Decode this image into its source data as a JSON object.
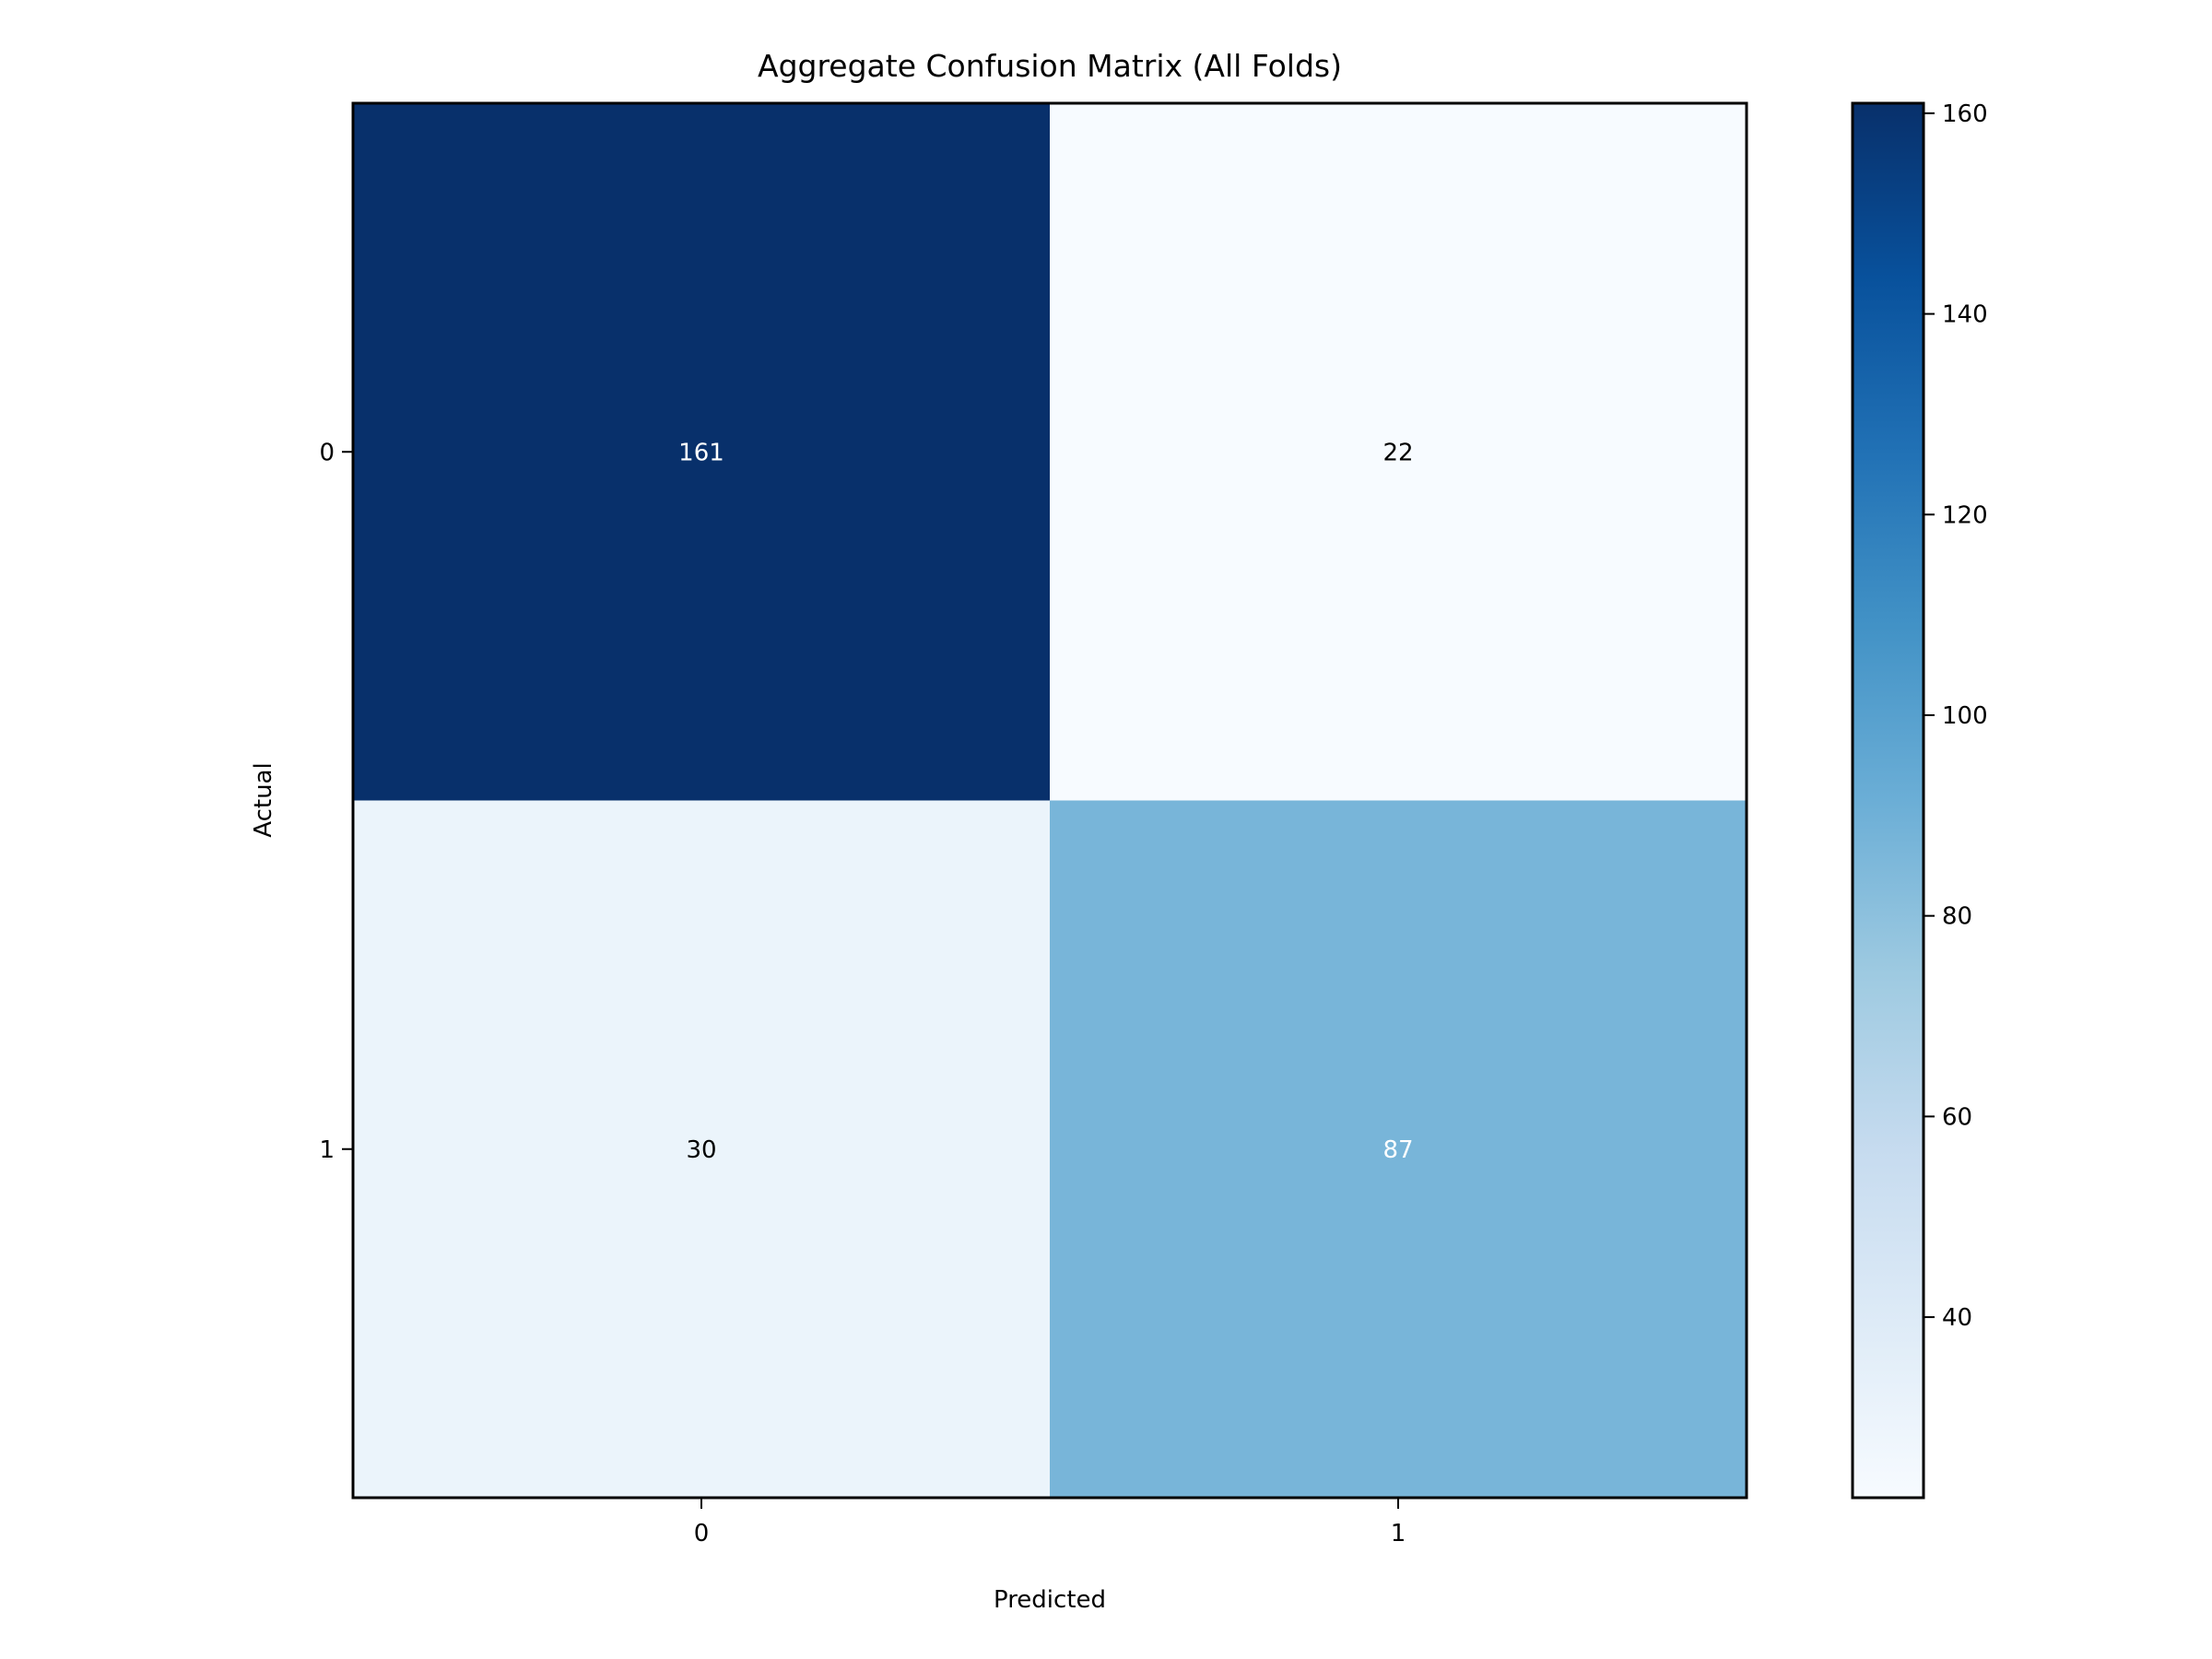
{
  "chart_data": {
    "type": "heatmap",
    "title": "Aggregate Confusion Matrix (All Folds)",
    "xlabel": "Predicted",
    "ylabel": "Actual",
    "x_categories": [
      "0",
      "1"
    ],
    "y_categories": [
      "0",
      "1"
    ],
    "values": [
      [
        161,
        22
      ],
      [
        30,
        87
      ]
    ],
    "colormap": "Blues",
    "colormap_stops": [
      "#f7fbff",
      "#deebf7",
      "#c6dbef",
      "#9ecae1",
      "#6baed6",
      "#4292c6",
      "#2171b5",
      "#08519c",
      "#08306b"
    ],
    "color_range": [
      22,
      161
    ],
    "colorbar_ticks": [
      40,
      60,
      80,
      100,
      120,
      140,
      160
    ],
    "grid": false
  }
}
